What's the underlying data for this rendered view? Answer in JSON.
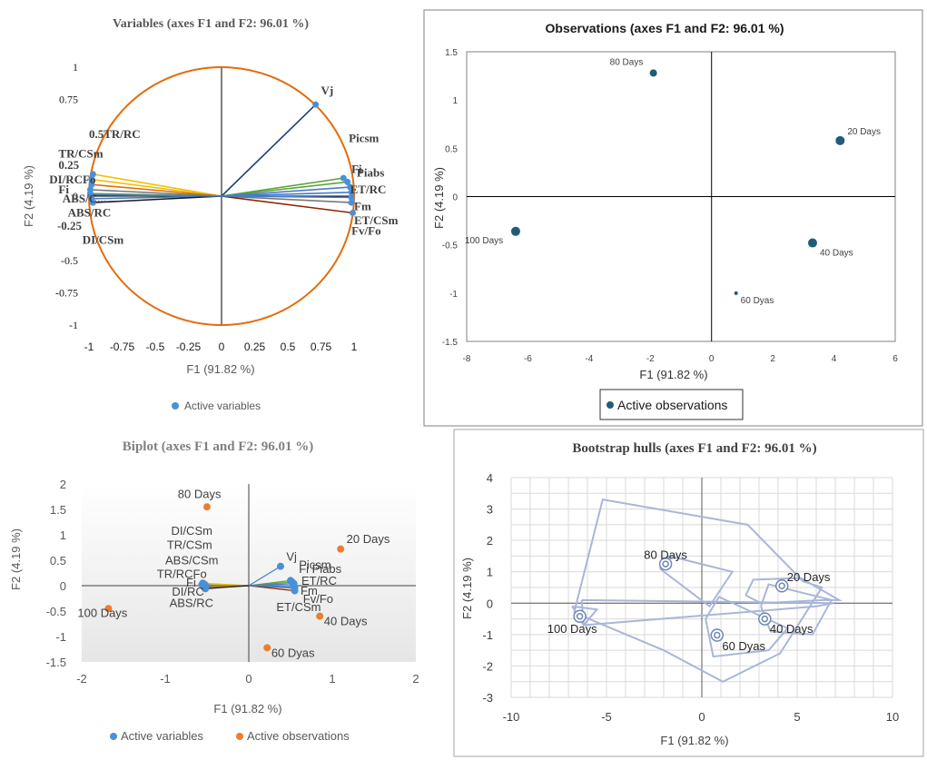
{
  "chart_data": [
    {
      "id": "variables",
      "type": "scatter",
      "title": "Variables (axes F1 and F2: 96.01 %)",
      "xlabel": "F1 (91.82 %)",
      "ylabel": "F2 (4.19 %)",
      "xlim": [
        -1,
        1
      ],
      "ylim": [
        -1,
        1
      ],
      "xticks": [
        "-1",
        "-0.75",
        "-0.5",
        "-0.25",
        "0",
        "0.25",
        "0.5",
        "0.75",
        "1"
      ],
      "yticks": [
        "1",
        "0.75",
        "0.5",
        "0.25",
        "0",
        "-0.25",
        "-0.5",
        "-0.75",
        "-1"
      ],
      "legend": "Active variables",
      "colors": {
        "circle": "#e36c0a",
        "point": "#4a90d9",
        "vj": "#1f3d7a",
        "yellow": "#f0c000",
        "green": "#5aa33b",
        "blue": "#4a7cc7",
        "brown": "#8b2500",
        "gray": "#777777"
      },
      "points": [
        {
          "label": "Vj",
          "x": 0.71,
          "y": 0.71,
          "color": "#1f3d7a"
        },
        {
          "label": "Picsm",
          "x": 0.92,
          "y": 0.14,
          "color": "#5aa33b"
        },
        {
          "label": "Fi",
          "x": 0.95,
          "y": 0.11,
          "color": "#5aa33b"
        },
        {
          "label": "Piabs",
          "x": 0.97,
          "y": 0.07,
          "color": "#4a7cc7"
        },
        {
          "label": "ET/RC",
          "x": 0.98,
          "y": 0.03,
          "color": "#4a7cc7"
        },
        {
          "label": "Fm",
          "x": 0.98,
          "y": -0.05,
          "color": "#777777"
        },
        {
          "label": "ET/CSm",
          "x": 0.99,
          "y": -0.13,
          "color": "#8b2500"
        },
        {
          "label": "Fv/Fo",
          "x": 0.98,
          "y": -0.01,
          "color": "#4a7cc7"
        },
        {
          "label": "TR/RC",
          "x": -0.97,
          "y": 0.17,
          "color": "#f0c000"
        },
        {
          "label": "TR/CSm",
          "x": -0.98,
          "y": 0.13,
          "color": "#f0c000"
        },
        {
          "label": "DI/RC",
          "x": -0.98,
          "y": 0.09,
          "color": "#e36c0a"
        },
        {
          "label": "Fo",
          "x": -0.99,
          "y": 0.05,
          "color": "#777777"
        },
        {
          "label": "Fi",
          "x": -0.99,
          "y": 0.02,
          "color": "#5aa33b"
        },
        {
          "label": "ABS/C...",
          "x": -0.98,
          "y": -0.02,
          "color": "#4a7cc7"
        },
        {
          "label": "ABS/RC",
          "x": -0.97,
          "y": -0.05,
          "color": "#1a1a1a"
        },
        {
          "label": "DI/CSm",
          "x": -0.99,
          "y": 0.01,
          "color": "#4a7cc7"
        }
      ],
      "labels": [
        {
          "text": "Vj",
          "x": 0.75,
          "y": 0.79
        },
        {
          "text": "Picsm",
          "x": 0.96,
          "y": 0.42
        },
        {
          "text": "Fi",
          "x": 0.98,
          "y": 0.18
        },
        {
          "text": "Piabs",
          "x": 1.02,
          "y": 0.15
        },
        {
          "text": "ET/RC",
          "x": 0.97,
          "y": 0.02
        },
        {
          "text": "Fm",
          "x": 1.0,
          "y": -0.11
        },
        {
          "text": "ET/CSm",
          "x": 1.0,
          "y": -0.22
        },
        {
          "text": "Fv/Fo",
          "x": 0.98,
          "y": -0.3
        },
        {
          "text": "0.5TR/RC",
          "x": -1.0,
          "y": 0.45
        },
        {
          "text": "TR/CSm",
          "x": -1.23,
          "y": 0.3
        },
        {
          "text": "0.25",
          "x": -1.23,
          "y": 0.21
        },
        {
          "text": "DI/RCFo",
          "x": -1.3,
          "y": 0.1
        },
        {
          "text": "Fi",
          "x": -1.23,
          "y": 0.02
        },
        {
          "text": "ABS/C...",
          "x": -1.2,
          "y": -0.05
        },
        {
          "text": "ABS/RC",
          "x": -1.16,
          "y": -0.16
        },
        {
          "text": "-0.25",
          "x": -1.24,
          "y": -0.26
        },
        {
          "text": "DI/CSm",
          "x": -1.05,
          "y": -0.37
        }
      ]
    },
    {
      "id": "observations",
      "type": "scatter",
      "title": "Observations (axes F1 and F2: 96.01 %)",
      "xlabel": "F1 (91.82 %)",
      "ylabel": "F2 (4.19 %)",
      "xlim": [
        -8,
        6
      ],
      "ylim": [
        -1.5,
        1.5
      ],
      "xticks": [
        "-8",
        "-6",
        "-4",
        "-2",
        "0",
        "2",
        "4",
        "6"
      ],
      "yticks": [
        "1.5",
        "1",
        "0.5",
        "0",
        "-0.5",
        "-1",
        "-1.5"
      ],
      "legend": "Active observations",
      "color": "#1f5c7a",
      "points": [
        {
          "label": "80 Days",
          "x": -1.9,
          "y": 1.28,
          "r": 4
        },
        {
          "label": "20 Days",
          "x": 4.2,
          "y": 0.58,
          "r": 5
        },
        {
          "label": "100 Days",
          "x": -6.4,
          "y": -0.36,
          "r": 5
        },
        {
          "label": "40 Days",
          "x": 3.3,
          "y": -0.48,
          "r": 5
        },
        {
          "label": "60 Dyas",
          "x": 0.8,
          "y": -1.0,
          "r": 2
        }
      ]
    },
    {
      "id": "biplot",
      "type": "scatter",
      "title": "Biplot (axes F1 and F2: 96.01 %)",
      "xlabel": "F1 (91.82 %)",
      "ylabel": "F2 (4.19 %)",
      "xlim": [
        -2,
        2
      ],
      "ylim": [
        -1.5,
        2
      ],
      "xticks": [
        "-2",
        "-1",
        "0",
        "1",
        "2"
      ],
      "yticks": [
        "2",
        "1.5",
        "1",
        "0.5",
        "0",
        "-0.5",
        "-1",
        "-1.5"
      ],
      "legend": [
        "Active variables",
        "Active observations"
      ],
      "colors": {
        "variables": "#4a90d9",
        "observations": "#ed7d31"
      },
      "variables": [
        {
          "label": "Vj",
          "x": 0.38,
          "y": 0.38
        },
        {
          "label": "Picsm",
          "x": 0.5,
          "y": 0.1
        },
        {
          "label": "Fi",
          "x": 0.52,
          "y": 0.07
        },
        {
          "label": "Piabs",
          "x": 0.54,
          "y": 0.04
        },
        {
          "label": "ET/RC",
          "x": 0.53,
          "y": 0.0
        },
        {
          "label": "Fm",
          "x": 0.55,
          "y": -0.05
        },
        {
          "label": "ET/CSm",
          "x": 0.55,
          "y": -0.1
        },
        {
          "label": "Fv/Fo",
          "x": 0.54,
          "y": -0.03
        },
        {
          "label": "DI/CSm",
          "x": -0.53,
          "y": 0.03
        },
        {
          "label": "TR/CSm",
          "x": -0.55,
          "y": 0.05
        },
        {
          "label": "ABS/CSm",
          "x": -0.52,
          "y": 0.0
        },
        {
          "label": "TR/RC",
          "x": -0.56,
          "y": 0.02
        },
        {
          "label": "Fo",
          "x": -0.54,
          "y": -0.02
        },
        {
          "label": "Fi",
          "x": -0.55,
          "y": 0.01
        },
        {
          "label": "DI/RC",
          "x": -0.53,
          "y": -0.04
        },
        {
          "label": "ABS/RC",
          "x": -0.52,
          "y": -0.06
        }
      ],
      "variable_labels": [
        {
          "text": "DI/CSm",
          "x": -0.93,
          "y": 1.0
        },
        {
          "text": "TR/CSm",
          "x": -0.98,
          "y": 0.72
        },
        {
          "text": "ABS/CSm",
          "x": -1.0,
          "y": 0.42
        },
        {
          "text": "TR/RCFo",
          "x": -1.1,
          "y": 0.15
        },
        {
          "text": "Fi",
          "x": -0.75,
          "y": -0.02
        },
        {
          "text": "DI/RC",
          "x": -0.92,
          "y": -0.2
        },
        {
          "text": "ABS/RC",
          "x": -0.95,
          "y": -0.42
        },
        {
          "text": "Vj",
          "x": 0.45,
          "y": 0.49
        },
        {
          "text": "Picsm",
          "x": 0.6,
          "y": 0.33
        },
        {
          "text": "Fi Piabs",
          "x": 0.6,
          "y": 0.25
        },
        {
          "text": "ET/RC",
          "x": 0.63,
          "y": 0.02
        },
        {
          "text": "Fm",
          "x": 0.62,
          "y": -0.18
        },
        {
          "text": "Fv/Fo",
          "x": 0.65,
          "y": -0.34
        },
        {
          "text": "ET/CSm",
          "x": 0.33,
          "y": -0.5
        }
      ],
      "observations": [
        {
          "label": "80 Days",
          "x": -0.5,
          "y": 1.55
        },
        {
          "label": "20 Days",
          "x": 1.1,
          "y": 0.72
        },
        {
          "label": "100 Days",
          "x": -1.68,
          "y": -0.45
        },
        {
          "label": "40 Days",
          "x": 0.85,
          "y": -0.6
        },
        {
          "label": "60 Dyas",
          "x": 0.22,
          "y": -1.22
        }
      ],
      "observation_labels": [
        {
          "text": "80 Days",
          "x": -0.85,
          "y": 1.72
        },
        {
          "text": "20 Days",
          "x": 1.17,
          "y": 0.84
        },
        {
          "text": "100 Days",
          "x": -2.05,
          "y": -0.62
        },
        {
          "text": "40 Days",
          "x": 0.9,
          "y": -0.78
        },
        {
          "text": "60 Dyas",
          "x": 0.27,
          "y": -1.4
        }
      ]
    },
    {
      "id": "bootstrap",
      "type": "scatter",
      "title": "Bootstrap hulls (axes F1 and F2: 96.01 %)",
      "xlabel": "F1 (91.82 %)",
      "ylabel": "F2 (4.19 %)",
      "xlim": [
        -10,
        10
      ],
      "ylim": [
        -3,
        4
      ],
      "xticks": [
        "-10",
        "-5",
        "0",
        "5",
        "10"
      ],
      "yticks": [
        "4",
        "3",
        "2",
        "1",
        "0",
        "-1",
        "-2",
        "-3"
      ],
      "color": "#6f86b8",
      "hull_color": "#a9b6d9",
      "points": [
        {
          "label": "80 Days",
          "x": -1.9,
          "y": 1.25,
          "lx": -1.9,
          "ly": 1.55
        },
        {
          "label": "20 Days",
          "x": 4.2,
          "y": 0.55,
          "lx": 5.6,
          "ly": 0.85
        },
        {
          "label": "100 Days",
          "x": -6.4,
          "y": -0.42,
          "lx": -6.8,
          "ly": -0.8
        },
        {
          "label": "40 Days",
          "x": 3.3,
          "y": -0.5,
          "lx": 4.7,
          "ly": -0.8
        },
        {
          "label": "60 Dyas",
          "x": 0.8,
          "y": -1.02,
          "lx": 2.2,
          "ly": -1.35
        }
      ],
      "hulls": [
        [
          [
            -6.7,
            -0.3
          ],
          [
            -5.2,
            3.3
          ],
          [
            2.4,
            2.5
          ],
          [
            5.3,
            0.7
          ],
          [
            6.3,
            0.5
          ],
          [
            4.1,
            -1.6
          ],
          [
            1.1,
            -2.5
          ],
          [
            -2.0,
            -1.5
          ],
          [
            -6.7,
            -0.3
          ]
        ],
        [
          [
            -2.2,
            1.1
          ],
          [
            -1.7,
            1.5
          ],
          [
            1.6,
            1.0
          ],
          [
            0.4,
            -0.1
          ],
          [
            -2.2,
            1.1
          ]
        ],
        [
          [
            2.3,
            0.25
          ],
          [
            2.7,
            0.75
          ],
          [
            5.2,
            0.8
          ],
          [
            7.2,
            0.1
          ],
          [
            6.4,
            0.1
          ],
          [
            3.1,
            0.0
          ],
          [
            2.3,
            0.25
          ]
        ],
        [
          [
            3.1,
            -0.1
          ],
          [
            3.5,
            0.6
          ],
          [
            6.8,
            0.1
          ],
          [
            5.8,
            -1.0
          ],
          [
            3.6,
            -0.9
          ],
          [
            3.1,
            -0.1
          ]
        ],
        [
          [
            -6.3,
            0.1
          ],
          [
            6.9,
            0.0
          ],
          [
            6.0,
            -0.1
          ],
          [
            -6.2,
            -0.7
          ],
          [
            -6.3,
            0.1
          ]
        ],
        [
          [
            0.2,
            -0.5
          ],
          [
            0.9,
            0.2
          ],
          [
            4.5,
            -0.8
          ],
          [
            3.5,
            -1.5
          ],
          [
            0.6,
            -1.7
          ],
          [
            0.2,
            -0.5
          ]
        ],
        [
          [
            -6.8,
            -0.1
          ],
          [
            -6.2,
            -0.7
          ],
          [
            -5.5,
            -0.2
          ],
          [
            -6.8,
            -0.1
          ]
        ]
      ]
    }
  ]
}
